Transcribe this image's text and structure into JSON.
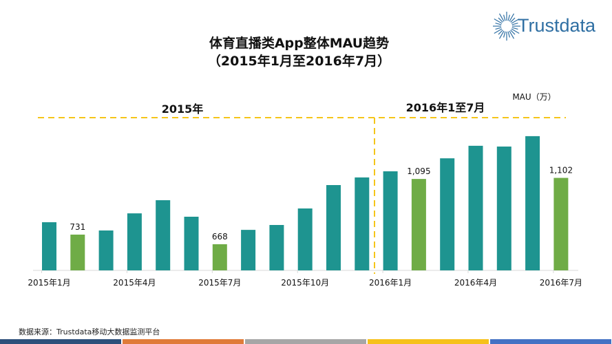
{
  "header": {
    "title_line1": "体育直播类App整体MAU趋势",
    "title_line2": "（2015年1月至2016年7月）",
    "logo_text": "Trustdata"
  },
  "footer": {
    "source": "数据来源：Trustdata移动大数据监测平台",
    "strip_colors": [
      "#2d4f7a",
      "#e07b39",
      "#a6a6a6",
      "#f6c11a",
      "#4472c4"
    ]
  },
  "chart_data": {
    "type": "bar",
    "unit_label": "MAU（万）",
    "period_labels": [
      "2015年",
      "2016年1至7月"
    ],
    "categories": [
      "2015-01",
      "2015-02",
      "2015-03",
      "2015-04",
      "2015-05",
      "2015-06",
      "2015-07",
      "2015-08",
      "2015-09",
      "2015-10",
      "2015-11",
      "2015-12",
      "2016-01",
      "2016-02",
      "2016-03",
      "2016-04",
      "2016-05",
      "2016-06",
      "2016-07"
    ],
    "tick_labels": [
      {
        "index": 0,
        "label": "2015年1月"
      },
      {
        "index": 3,
        "label": "2015年4月"
      },
      {
        "index": 6,
        "label": "2015年7月"
      },
      {
        "index": 9,
        "label": "2015年10月"
      },
      {
        "index": 12,
        "label": "2016年1月"
      },
      {
        "index": 15,
        "label": "2016年4月"
      },
      {
        "index": 18,
        "label": "2016年7月"
      }
    ],
    "values": [
      812,
      731,
      758,
      870,
      956,
      848,
      668,
      762,
      794,
      902,
      1055,
      1105,
      1145,
      1095,
      1230,
      1312,
      1307,
      1375,
      1102
    ],
    "data_labels": [
      {
        "index": 1,
        "label": "731"
      },
      {
        "index": 6,
        "label": "668"
      },
      {
        "index": 13,
        "label": "1,095"
      },
      {
        "index": 18,
        "label": "1,102"
      }
    ],
    "highlight_indices": [
      1,
      6,
      13,
      18
    ],
    "colors": {
      "bar": "#1e9490",
      "highlight": "#6fac46",
      "divider": "#f5c518"
    },
    "grid": false
  }
}
